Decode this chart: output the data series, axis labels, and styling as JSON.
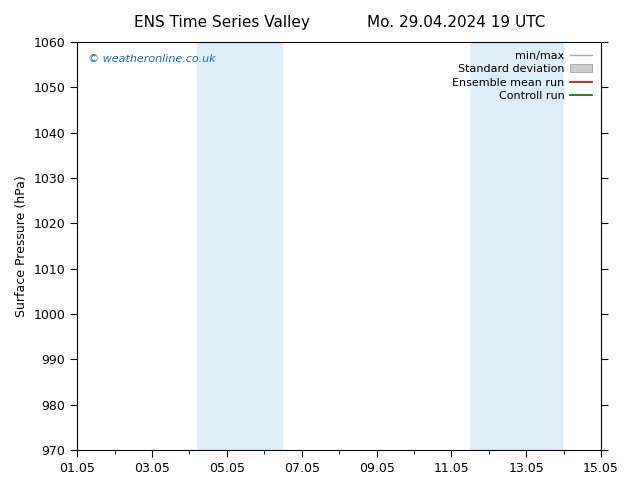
{
  "title_left": "ENS Time Series Valley",
  "title_right": "Mo. 29.04.2024 19 UTC",
  "ylabel": "Surface Pressure (hPa)",
  "ylim": [
    970,
    1060
  ],
  "yticks": [
    970,
    980,
    990,
    1000,
    1010,
    1020,
    1030,
    1040,
    1050,
    1060
  ],
  "xlim": [
    0,
    14
  ],
  "xtick_labels": [
    "01.05",
    "03.05",
    "05.05",
    "07.05",
    "09.05",
    "11.05",
    "13.05",
    "15.05"
  ],
  "xtick_positions": [
    0,
    2,
    4,
    6,
    8,
    10,
    12,
    14
  ],
  "shaded_bands": [
    {
      "xstart": 3.2,
      "xend": 5.5
    },
    {
      "xstart": 10.5,
      "xend": 13.0
    }
  ],
  "band_color": "#ddeef8",
  "background_color": "#ffffff",
  "watermark": "© weatheronline.co.uk",
  "watermark_color": "#1a6db5",
  "legend_items": [
    {
      "label": "min/max",
      "color": "#aaaaaa",
      "type": "line_with_caps"
    },
    {
      "label": "Standard deviation",
      "color": "#cccccc",
      "type": "fill"
    },
    {
      "label": "Ensemble mean run",
      "color": "#cc0000",
      "type": "line"
    },
    {
      "label": "Controll run",
      "color": "#006600",
      "type": "line"
    }
  ],
  "title_fontsize": 11,
  "ylabel_fontsize": 9,
  "tick_fontsize": 9,
  "legend_fontsize": 8,
  "watermark_fontsize": 8
}
